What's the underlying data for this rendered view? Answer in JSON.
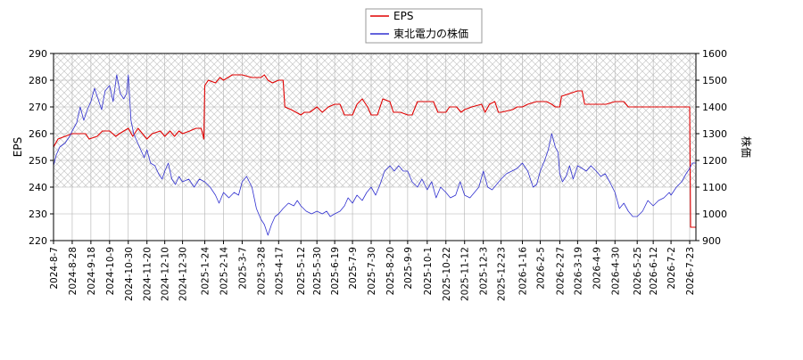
{
  "chart_data": {
    "type": "line",
    "legend": {
      "placement": "top-center",
      "entries": [
        {
          "label": "EPS",
          "color": "#e00000"
        },
        {
          "label": "東北電力の株価",
          "color": "#3030d0"
        }
      ]
    },
    "left_axis": {
      "label": "EPS",
      "ylim": [
        220,
        290
      ],
      "ticks": [
        "220",
        "230",
        "240",
        "250",
        "260",
        "270",
        "280",
        "290"
      ]
    },
    "right_axis": {
      "label": "株価",
      "ylim": [
        900,
        1600
      ],
      "ticks": [
        "900",
        "1000",
        "1100",
        "1200",
        "1300",
        "1400",
        "1500",
        "1600"
      ]
    },
    "x_axis": {
      "range": [
        "2024-08-07",
        "2026-07-30"
      ],
      "tick_labels": [
        "2024-8-7",
        "2024-8-28",
        "2024-9-18",
        "2024-10-9",
        "2024-10-30",
        "2024-11-20",
        "2024-12-10",
        "2024-12-30",
        "2025-1-24",
        "2025-2-14",
        "2025-3-7",
        "2025-3-28",
        "2025-4-17",
        "2025-5-12",
        "2025-5-30",
        "2025-6-19",
        "2025-7-9",
        "2025-7-30",
        "2025-8-20",
        "2025-9-9",
        "2025-10-1",
        "2025-10-22",
        "2025-11-12",
        "2025-12-3",
        "2025-12-23",
        "2026-1-16",
        "2026-2-5",
        "2026-2-27",
        "2026-3-19",
        "2026-4-9",
        "2026-4-30",
        "2026-5-25",
        "2026-6-12",
        "2026-7-2",
        "2026-7-23"
      ]
    },
    "grid": true,
    "hatched_band": {
      "axis": "left",
      "from": 240,
      "to": 290
    },
    "series": [
      {
        "name": "EPS",
        "axis": "left",
        "color": "#e00000",
        "points": [
          [
            "2024-08-07",
            255
          ],
          [
            "2024-08-12",
            258
          ],
          [
            "2024-08-20",
            259
          ],
          [
            "2024-08-28",
            260
          ],
          [
            "2024-09-12",
            260
          ],
          [
            "2024-09-16",
            258
          ],
          [
            "2024-09-25",
            259
          ],
          [
            "2024-10-01",
            261
          ],
          [
            "2024-10-09",
            261
          ],
          [
            "2024-10-16",
            259
          ],
          [
            "2024-10-20",
            260
          ],
          [
            "2024-10-25",
            261
          ],
          [
            "2024-10-30",
            262
          ],
          [
            "2024-11-04",
            259
          ],
          [
            "2024-11-10",
            262
          ],
          [
            "2024-11-20",
            258
          ],
          [
            "2024-11-26",
            260
          ],
          [
            "2024-12-05",
            261
          ],
          [
            "2024-12-10",
            259
          ],
          [
            "2024-12-16",
            261
          ],
          [
            "2024-12-21",
            259
          ],
          [
            "2024-12-26",
            261
          ],
          [
            "2024-12-30",
            260
          ],
          [
            "2025-01-07",
            261
          ],
          [
            "2025-01-14",
            262
          ],
          [
            "2025-01-20",
            262
          ],
          [
            "2025-01-23",
            258
          ],
          [
            "2025-01-24",
            278
          ],
          [
            "2025-01-28",
            280
          ],
          [
            "2025-02-05",
            279
          ],
          [
            "2025-02-10",
            281
          ],
          [
            "2025-02-14",
            280
          ],
          [
            "2025-02-24",
            282
          ],
          [
            "2025-03-07",
            282
          ],
          [
            "2025-03-18",
            281
          ],
          [
            "2025-03-28",
            281
          ],
          [
            "2025-04-01",
            282
          ],
          [
            "2025-04-05",
            280
          ],
          [
            "2025-04-10",
            279
          ],
          [
            "2025-04-17",
            280
          ],
          [
            "2025-04-22",
            280
          ],
          [
            "2025-04-24",
            270
          ],
          [
            "2025-05-01",
            269
          ],
          [
            "2025-05-12",
            267
          ],
          [
            "2025-05-16",
            268
          ],
          [
            "2025-05-22",
            268
          ],
          [
            "2025-05-30",
            270
          ],
          [
            "2025-06-05",
            268
          ],
          [
            "2025-06-12",
            270
          ],
          [
            "2025-06-19",
            271
          ],
          [
            "2025-06-25",
            271
          ],
          [
            "2025-06-30",
            267
          ],
          [
            "2025-07-09",
            267
          ],
          [
            "2025-07-14",
            271
          ],
          [
            "2025-07-20",
            273
          ],
          [
            "2025-07-26",
            270
          ],
          [
            "2025-07-30",
            267
          ],
          [
            "2025-08-06",
            267
          ],
          [
            "2025-08-12",
            273
          ],
          [
            "2025-08-20",
            272
          ],
          [
            "2025-08-24",
            268
          ],
          [
            "2025-09-01",
            268
          ],
          [
            "2025-09-09",
            267
          ],
          [
            "2025-09-14",
            267
          ],
          [
            "2025-09-20",
            272
          ],
          [
            "2025-10-01",
            272
          ],
          [
            "2025-10-08",
            272
          ],
          [
            "2025-10-13",
            268
          ],
          [
            "2025-10-22",
            268
          ],
          [
            "2025-10-26",
            270
          ],
          [
            "2025-11-03",
            270
          ],
          [
            "2025-11-08",
            268
          ],
          [
            "2025-11-12",
            269
          ],
          [
            "2025-11-20",
            270
          ],
          [
            "2025-12-01",
            271
          ],
          [
            "2025-12-05",
            268
          ],
          [
            "2025-12-10",
            271
          ],
          [
            "2025-12-16",
            272
          ],
          [
            "2025-12-20",
            268
          ],
          [
            "2025-12-23",
            268
          ],
          [
            "2026-01-05",
            269
          ],
          [
            "2026-01-10",
            270
          ],
          [
            "2026-01-16",
            270
          ],
          [
            "2026-01-22",
            271
          ],
          [
            "2026-02-01",
            272
          ],
          [
            "2026-02-05",
            272
          ],
          [
            "2026-02-12",
            272
          ],
          [
            "2026-02-18",
            271
          ],
          [
            "2026-02-22",
            270
          ],
          [
            "2026-02-27",
            270
          ],
          [
            "2026-03-01",
            274
          ],
          [
            "2026-03-10",
            275
          ],
          [
            "2026-03-19",
            276
          ],
          [
            "2026-03-24",
            276
          ],
          [
            "2026-03-27",
            271
          ],
          [
            "2026-04-09",
            271
          ],
          [
            "2026-04-20",
            271
          ],
          [
            "2026-04-30",
            272
          ],
          [
            "2026-05-10",
            272
          ],
          [
            "2026-05-15",
            270
          ],
          [
            "2026-05-25",
            270
          ],
          [
            "2026-06-12",
            270
          ],
          [
            "2026-07-02",
            270
          ],
          [
            "2026-07-22",
            270
          ],
          [
            "2026-07-23",
            270
          ],
          [
            "2026-07-24",
            225
          ],
          [
            "2026-07-30",
            225
          ]
        ]
      },
      {
        "name": "東北電力の株価",
        "axis": "right",
        "color": "#3030d0",
        "points": [
          [
            "2024-08-07",
            1180
          ],
          [
            "2024-08-10",
            1220
          ],
          [
            "2024-08-14",
            1250
          ],
          [
            "2024-08-20",
            1265
          ],
          [
            "2024-08-25",
            1290
          ],
          [
            "2024-08-28",
            1310
          ],
          [
            "2024-09-02",
            1340
          ],
          [
            "2024-09-06",
            1400
          ],
          [
            "2024-09-10",
            1350
          ],
          [
            "2024-09-14",
            1390
          ],
          [
            "2024-09-18",
            1420
          ],
          [
            "2024-09-22",
            1470
          ],
          [
            "2024-09-26",
            1430
          ],
          [
            "2024-09-30",
            1390
          ],
          [
            "2024-10-04",
            1460
          ],
          [
            "2024-10-09",
            1480
          ],
          [
            "2024-10-13",
            1420
          ],
          [
            "2024-10-17",
            1520
          ],
          [
            "2024-10-21",
            1450
          ],
          [
            "2024-10-25",
            1430
          ],
          [
            "2024-10-28",
            1450
          ],
          [
            "2024-10-30",
            1520
          ],
          [
            "2024-11-02",
            1350
          ],
          [
            "2024-11-05",
            1300
          ],
          [
            "2024-11-09",
            1270
          ],
          [
            "2024-11-13",
            1240
          ],
          [
            "2024-11-17",
            1210
          ],
          [
            "2024-11-20",
            1240
          ],
          [
            "2024-11-24",
            1190
          ],
          [
            "2024-11-29",
            1180
          ],
          [
            "2024-12-03",
            1150
          ],
          [
            "2024-12-07",
            1130
          ],
          [
            "2024-12-10",
            1160
          ],
          [
            "2024-12-14",
            1190
          ],
          [
            "2024-12-18",
            1130
          ],
          [
            "2024-12-22",
            1110
          ],
          [
            "2024-12-26",
            1140
          ],
          [
            "2024-12-30",
            1120
          ],
          [
            "2025-01-06",
            1130
          ],
          [
            "2025-01-12",
            1100
          ],
          [
            "2025-01-18",
            1130
          ],
          [
            "2025-01-24",
            1120
          ],
          [
            "2025-01-30",
            1100
          ],
          [
            "2025-02-05",
            1070
          ],
          [
            "2025-02-09",
            1040
          ],
          [
            "2025-02-14",
            1080
          ],
          [
            "2025-02-20",
            1060
          ],
          [
            "2025-02-26",
            1080
          ],
          [
            "2025-03-03",
            1070
          ],
          [
            "2025-03-07",
            1120
          ],
          [
            "2025-03-12",
            1140
          ],
          [
            "2025-03-18",
            1100
          ],
          [
            "2025-03-23",
            1020
          ],
          [
            "2025-03-28",
            980
          ],
          [
            "2025-04-01",
            960
          ],
          [
            "2025-04-05",
            920
          ],
          [
            "2025-04-09",
            960
          ],
          [
            "2025-04-13",
            990
          ],
          [
            "2025-04-17",
            1000
          ],
          [
            "2025-04-22",
            1020
          ],
          [
            "2025-04-28",
            1040
          ],
          [
            "2025-05-04",
            1030
          ],
          [
            "2025-05-08",
            1050
          ],
          [
            "2025-05-12",
            1030
          ],
          [
            "2025-05-18",
            1010
          ],
          [
            "2025-05-24",
            1000
          ],
          [
            "2025-05-30",
            1010
          ],
          [
            "2025-06-05",
            1000
          ],
          [
            "2025-06-10",
            1010
          ],
          [
            "2025-06-14",
            990
          ],
          [
            "2025-06-19",
            1000
          ],
          [
            "2025-06-25",
            1010
          ],
          [
            "2025-06-30",
            1030
          ],
          [
            "2025-07-04",
            1060
          ],
          [
            "2025-07-09",
            1040
          ],
          [
            "2025-07-14",
            1070
          ],
          [
            "2025-07-20",
            1050
          ],
          [
            "2025-07-25",
            1080
          ],
          [
            "2025-07-30",
            1100
          ],
          [
            "2025-08-04",
            1070
          ],
          [
            "2025-08-09",
            1110
          ],
          [
            "2025-08-14",
            1160
          ],
          [
            "2025-08-20",
            1180
          ],
          [
            "2025-08-25",
            1160
          ],
          [
            "2025-08-30",
            1180
          ],
          [
            "2025-09-04",
            1160
          ],
          [
            "2025-09-09",
            1160
          ],
          [
            "2025-09-14",
            1120
          ],
          [
            "2025-09-20",
            1100
          ],
          [
            "2025-09-25",
            1130
          ],
          [
            "2025-10-01",
            1090
          ],
          [
            "2025-10-06",
            1120
          ],
          [
            "2025-10-11",
            1060
          ],
          [
            "2025-10-16",
            1100
          ],
          [
            "2025-10-22",
            1080
          ],
          [
            "2025-10-27",
            1060
          ],
          [
            "2025-11-02",
            1070
          ],
          [
            "2025-11-07",
            1120
          ],
          [
            "2025-11-12",
            1070
          ],
          [
            "2025-11-18",
            1060
          ],
          [
            "2025-11-23",
            1080
          ],
          [
            "2025-11-28",
            1100
          ],
          [
            "2025-12-03",
            1160
          ],
          [
            "2025-12-08",
            1100
          ],
          [
            "2025-12-13",
            1090
          ],
          [
            "2025-12-18",
            1110
          ],
          [
            "2025-12-23",
            1130
          ],
          [
            "2025-12-29",
            1150
          ],
          [
            "2026-01-04",
            1160
          ],
          [
            "2026-01-10",
            1170
          ],
          [
            "2026-01-16",
            1190
          ],
          [
            "2026-01-22",
            1160
          ],
          [
            "2026-01-28",
            1100
          ],
          [
            "2026-02-01",
            1110
          ],
          [
            "2026-02-05",
            1160
          ],
          [
            "2026-02-10",
            1200
          ],
          [
            "2026-02-14",
            1240
          ],
          [
            "2026-02-18",
            1300
          ],
          [
            "2026-02-22",
            1250
          ],
          [
            "2026-02-25",
            1230
          ],
          [
            "2026-02-27",
            1150
          ],
          [
            "2026-03-02",
            1120
          ],
          [
            "2026-03-06",
            1140
          ],
          [
            "2026-03-10",
            1180
          ],
          [
            "2026-03-14",
            1130
          ],
          [
            "2026-03-19",
            1180
          ],
          [
            "2026-03-24",
            1170
          ],
          [
            "2026-03-29",
            1160
          ],
          [
            "2026-04-03",
            1180
          ],
          [
            "2026-04-09",
            1160
          ],
          [
            "2026-04-14",
            1140
          ],
          [
            "2026-04-19",
            1150
          ],
          [
            "2026-04-24",
            1120
          ],
          [
            "2026-04-30",
            1080
          ],
          [
            "2026-05-05",
            1020
          ],
          [
            "2026-05-10",
            1040
          ],
          [
            "2026-05-15",
            1010
          ],
          [
            "2026-05-20",
            990
          ],
          [
            "2026-05-25",
            990
          ],
          [
            "2026-05-31",
            1010
          ],
          [
            "2026-06-06",
            1050
          ],
          [
            "2026-06-12",
            1030
          ],
          [
            "2026-06-18",
            1050
          ],
          [
            "2026-06-24",
            1060
          ],
          [
            "2026-06-30",
            1080
          ],
          [
            "2026-07-02",
            1070
          ],
          [
            "2026-07-08",
            1100
          ],
          [
            "2026-07-14",
            1120
          ],
          [
            "2026-07-19",
            1150
          ],
          [
            "2026-07-23",
            1170
          ],
          [
            "2026-07-26",
            1190
          ],
          [
            "2026-07-30",
            1190
          ]
        ]
      }
    ]
  }
}
